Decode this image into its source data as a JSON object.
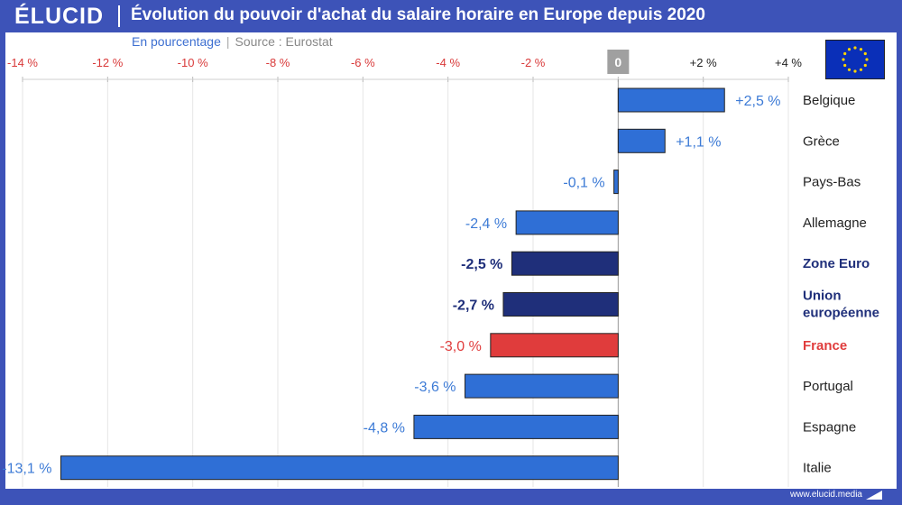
{
  "header": {
    "logo": "ÉLUCID",
    "title": "Évolution du pouvoir d'achat du salaire horaire en Europe depuis 2020"
  },
  "subtitle": {
    "unit": "En pourcentage",
    "source": "Source : Eurostat"
  },
  "footer": {
    "url": "www.elucid.media"
  },
  "colors": {
    "bar_default": "#2f6fd6",
    "bar_aggregate": "#1f2f7a",
    "bar_france": "#e03c3c",
    "label_default": "#3d7bd6",
    "label_aggregate": "#1f2f7a",
    "label_france": "#e03c3c",
    "tick_negative": "#d93a3a",
    "tick_positive": "#222222",
    "header_bg": "#3d53b8"
  },
  "chart_data": {
    "type": "bar",
    "orientation": "horizontal",
    "xlim": [
      -14,
      4
    ],
    "ticks": [
      -14,
      -12,
      -10,
      -8,
      -6,
      -4,
      -2,
      0,
      2,
      4
    ],
    "tick_labels": [
      "-14 %",
      "-12 %",
      "-10 %",
      "-8 %",
      "-6 %",
      "-4 %",
      "-2 %",
      "0",
      "+2 %",
      "+4 %"
    ],
    "grid": true,
    "categories": [
      "Belgique",
      "Grèce",
      "Pays-Bas",
      "Allemagne",
      "Zone Euro",
      "Union européenne",
      "France",
      "Portugal",
      "Espagne",
      "Italie"
    ],
    "values": [
      2.5,
      1.1,
      -0.1,
      -2.4,
      -2.5,
      -2.7,
      -3.0,
      -3.6,
      -4.8,
      -13.1
    ],
    "value_labels": [
      "+2,5 %",
      "+1,1 %",
      "-0,1 %",
      "-2,4 %",
      "-2,5 %",
      "-2,7 %",
      "-3,0 %",
      "-3,6 %",
      "-4,8 %",
      "-13,1 %"
    ],
    "kinds": [
      "default",
      "default",
      "default",
      "default",
      "aggregate",
      "aggregate",
      "france",
      "default",
      "default",
      "default"
    ]
  }
}
